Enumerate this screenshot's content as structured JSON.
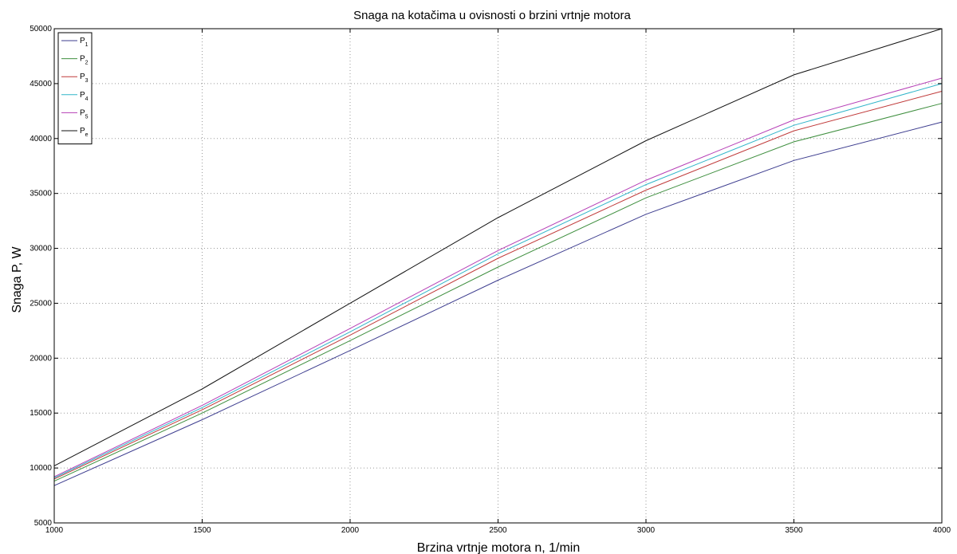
{
  "chart_data": {
    "type": "line",
    "title": "Snaga na kotačima u ovisnosti o brzini vrtnje motora",
    "xlabel": "Brzina vrtnje motora n, 1/min",
    "ylabel": "Snaga P, W",
    "xlim": [
      1000,
      4000
    ],
    "ylim": [
      5000,
      50000
    ],
    "xticks": [
      1000,
      1500,
      2000,
      2500,
      3000,
      3500,
      4000
    ],
    "yticks": [
      5000,
      10000,
      15000,
      20000,
      25000,
      30000,
      35000,
      40000,
      45000,
      50000
    ],
    "grid": true,
    "legend_placement": "top-left",
    "x": [
      1000,
      1500,
      2000,
      2500,
      3000,
      3500,
      4000
    ],
    "series": [
      {
        "name": "P",
        "sub": "1",
        "color": "#3d3d8f",
        "values": [
          8400,
          14400,
          20700,
          27100,
          33100,
          38000,
          41500
        ]
      },
      {
        "name": "P",
        "sub": "2",
        "color": "#3f8f3f",
        "values": [
          8800,
          15000,
          21600,
          28300,
          34600,
          39700,
          43200
        ]
      },
      {
        "name": "P",
        "sub": "3",
        "color": "#c03a3a",
        "values": [
          9000,
          15300,
          22100,
          29100,
          35300,
          40700,
          44300
        ]
      },
      {
        "name": "P",
        "sub": "4",
        "color": "#30b5c9",
        "values": [
          9100,
          15500,
          22400,
          29500,
          35800,
          41200,
          45000
        ]
      },
      {
        "name": "P",
        "sub": "5",
        "color": "#b63fb6",
        "values": [
          9200,
          15700,
          22700,
          29800,
          36200,
          41700,
          45500
        ]
      },
      {
        "name": "P",
        "sub": "e",
        "color": "#111111",
        "values": [
          10200,
          17200,
          25000,
          32800,
          39800,
          45800,
          50000
        ]
      }
    ]
  }
}
